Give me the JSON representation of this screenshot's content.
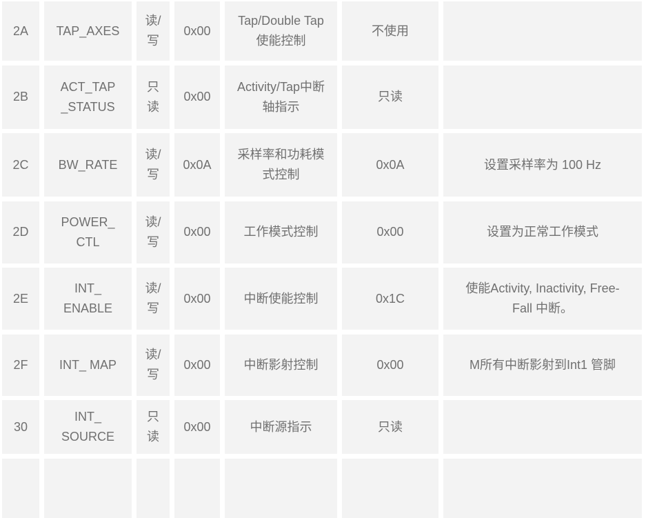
{
  "colors": {
    "page_background": "#ffffff",
    "cell_background": "#f3f3f3",
    "text": "#707070"
  },
  "register_table": {
    "column_keys": [
      "address",
      "name",
      "access",
      "default_value",
      "description",
      "set_value",
      "note"
    ],
    "rows": [
      {
        "address": "2A",
        "name": "TAP_AXES",
        "access": "读/\n写",
        "default_value": "0x00",
        "description": "Tap/Double Tap\n使能控制",
        "set_value": "不使用",
        "note": ""
      },
      {
        "address": "2B",
        "name": "ACT_TAP\n_STATUS",
        "access": "只\n读",
        "default_value": "0x00",
        "description": "Activity/Tap中断\n轴指示",
        "set_value": "只读",
        "note": ""
      },
      {
        "address": "2C",
        "name": "BW_RATE",
        "access": "读/\n写",
        "default_value": "0x0A",
        "description": "采样率和功耗模\n式控制",
        "set_value": "0x0A",
        "note": "设置采样率为 100 Hz"
      },
      {
        "address": "2D",
        "name": "POWER_\nCTL",
        "access": "读/\n写",
        "default_value": "0x00",
        "description": "工作模式控制",
        "set_value": "0x00",
        "note": "设置为正常工作模式"
      },
      {
        "address": "2E",
        "name": "INT_\nENABLE",
        "access": "读/\n写",
        "default_value": "0x00",
        "description": "中断使能控制",
        "set_value": "0x1C",
        "note": "使能Activity, Inactivity, Free-\nFall 中断。"
      },
      {
        "address": "2F",
        "name": "INT_ MAP",
        "access": "读/\n写",
        "default_value": "0x00",
        "description": "中断影射控制",
        "set_value": "0x00",
        "note": "M所有中断影射到Int1 管脚"
      },
      {
        "address": "30",
        "name": "INT_\nSOURCE",
        "access": "只\n读",
        "default_value": "0x00",
        "description": "中断源指示",
        "set_value": "只读",
        "note": ""
      }
    ],
    "partial_next_row": {
      "visible": true,
      "cells": [
        "",
        "",
        "",
        "",
        "",
        "",
        ""
      ]
    }
  }
}
